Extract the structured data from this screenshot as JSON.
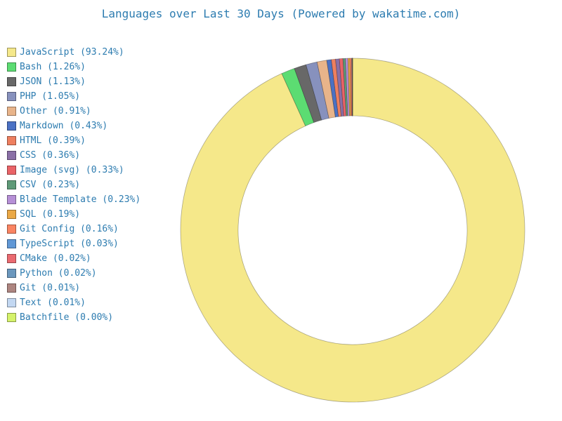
{
  "chart_data": {
    "type": "pie",
    "title": "Languages over Last 30 Days (Powered by wakatime.com)",
    "legend_placement": "left",
    "slices": [
      {
        "label": "JavaScript (93.24%)",
        "value": 93.24,
        "color": "#f5e88a"
      },
      {
        "label": "Bash (1.26%)",
        "value": 1.26,
        "color": "#5cdc72"
      },
      {
        "label": "JSON (1.13%)",
        "value": 1.13,
        "color": "#686868"
      },
      {
        "label": "PHP (1.05%)",
        "value": 1.05,
        "color": "#8791bd"
      },
      {
        "label": "Other (0.91%)",
        "value": 0.91,
        "color": "#e8b48a"
      },
      {
        "label": "Markdown (0.43%)",
        "value": 0.43,
        "color": "#4b71c4"
      },
      {
        "label": "HTML (0.39%)",
        "value": 0.39,
        "color": "#ee7f5f"
      },
      {
        "label": "CSS (0.36%)",
        "value": 0.36,
        "color": "#8a6fa6"
      },
      {
        "label": "Image (svg) (0.33%)",
        "value": 0.33,
        "color": "#ea6367"
      },
      {
        "label": "CSV (0.23%)",
        "value": 0.23,
        "color": "#5f9a78"
      },
      {
        "label": "Blade Template (0.23%)",
        "value": 0.23,
        "color": "#b68fd6"
      },
      {
        "label": "SQL (0.19%)",
        "value": 0.19,
        "color": "#eba845"
      },
      {
        "label": "Git Config (0.16%)",
        "value": 0.16,
        "color": "#fa8462"
      },
      {
        "label": "TypeScript (0.03%)",
        "value": 0.03,
        "color": "#6198d6"
      },
      {
        "label": "CMake (0.02%)",
        "value": 0.02,
        "color": "#ea6a70"
      },
      {
        "label": "Python (0.02%)",
        "value": 0.02,
        "color": "#6b97bd"
      },
      {
        "label": "Git (0.01%)",
        "value": 0.01,
        "color": "#ad8580"
      },
      {
        "label": "Text (0.01%)",
        "value": 0.01,
        "color": "#c3d8f2"
      },
      {
        "label": "Batchfile (0.00%)",
        "value": 0.0,
        "color": "#d5f26a"
      }
    ]
  }
}
